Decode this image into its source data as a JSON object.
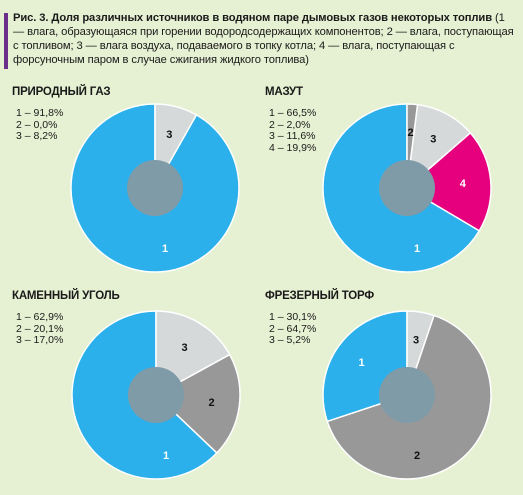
{
  "caption": {
    "title": "Рис. 3. Доля различных источников в водяном паре дымовых газов некоторых топлив",
    "text": "(1 — влага, образующаяся при горении водородсодержащих компонентов; 2 — влага, поступающая с топливом; 3 — влага воздуха, подаваемого в топку котла; 4 — влага, поступающая с форсуночным паром в случае сжигания жидкого топлива)"
  },
  "colors": {
    "background": "#e6f0d2",
    "slice_1": "#2bb0ec",
    "slice_2": "#989898",
    "slice_3": "#d6d9da",
    "slice_4": "#e6007e",
    "hole": "#7f9ba8",
    "accent": "#6b2f8a"
  },
  "chart_data": [
    {
      "type": "pie",
      "title": "ПРИРОДНЫЙ ГАЗ",
      "legend": [
        "1 – 91,8%",
        "2 – 0,0%",
        "3 – 8,2%"
      ],
      "slices": [
        {
          "label": "1",
          "value": 91.8
        },
        {
          "label": "2",
          "value": 0.0
        },
        {
          "label": "3",
          "value": 8.2
        }
      ]
    },
    {
      "type": "pie",
      "title": "МАЗУТ",
      "legend": [
        "1 – 66,5%",
        "2 – 2,0%",
        "3 – 11,6%",
        "4 – 19,9%"
      ],
      "slices": [
        {
          "label": "1",
          "value": 66.5
        },
        {
          "label": "2",
          "value": 2.0
        },
        {
          "label": "3",
          "value": 11.6
        },
        {
          "label": "4",
          "value": 19.9
        }
      ]
    },
    {
      "type": "pie",
      "title": "КАМЕННЫЙ УГОЛЬ",
      "legend": [
        "1 – 62,9%",
        "2 – 20,1%",
        "3 – 17,0%"
      ],
      "slices": [
        {
          "label": "1",
          "value": 62.9
        },
        {
          "label": "2",
          "value": 20.1
        },
        {
          "label": "3",
          "value": 17.0
        }
      ]
    },
    {
      "type": "pie",
      "title": "ФРЕЗЕРНЫЙ ТОРФ",
      "legend": [
        "1 – 30,1%",
        "2 – 64,7%",
        "3 – 5,2%"
      ],
      "slices": [
        {
          "label": "1",
          "value": 30.1
        },
        {
          "label": "2",
          "value": 64.7
        },
        {
          "label": "3",
          "value": 5.2
        }
      ]
    }
  ]
}
